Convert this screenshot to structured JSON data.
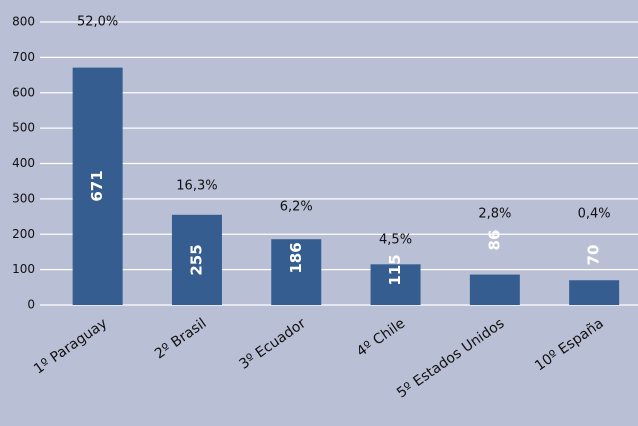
{
  "chart_data": {
    "type": "bar",
    "categories": [
      "1º Paraguay",
      "2º Brasil",
      "3º Ecuador",
      "4º Chile",
      "5º Estados Unidos",
      "10º España"
    ],
    "values": [
      671,
      255,
      186,
      115,
      86,
      70
    ],
    "annotations": [
      "52,0%",
      "16,3%",
      "6,2%",
      "4,5%",
      "2,8%",
      "0,4%"
    ],
    "color": "#365d8f",
    "ylim": [
      0,
      800
    ],
    "yticks": [
      0,
      100,
      200,
      300,
      400,
      500,
      600,
      700,
      800
    ],
    "grid": true
  }
}
